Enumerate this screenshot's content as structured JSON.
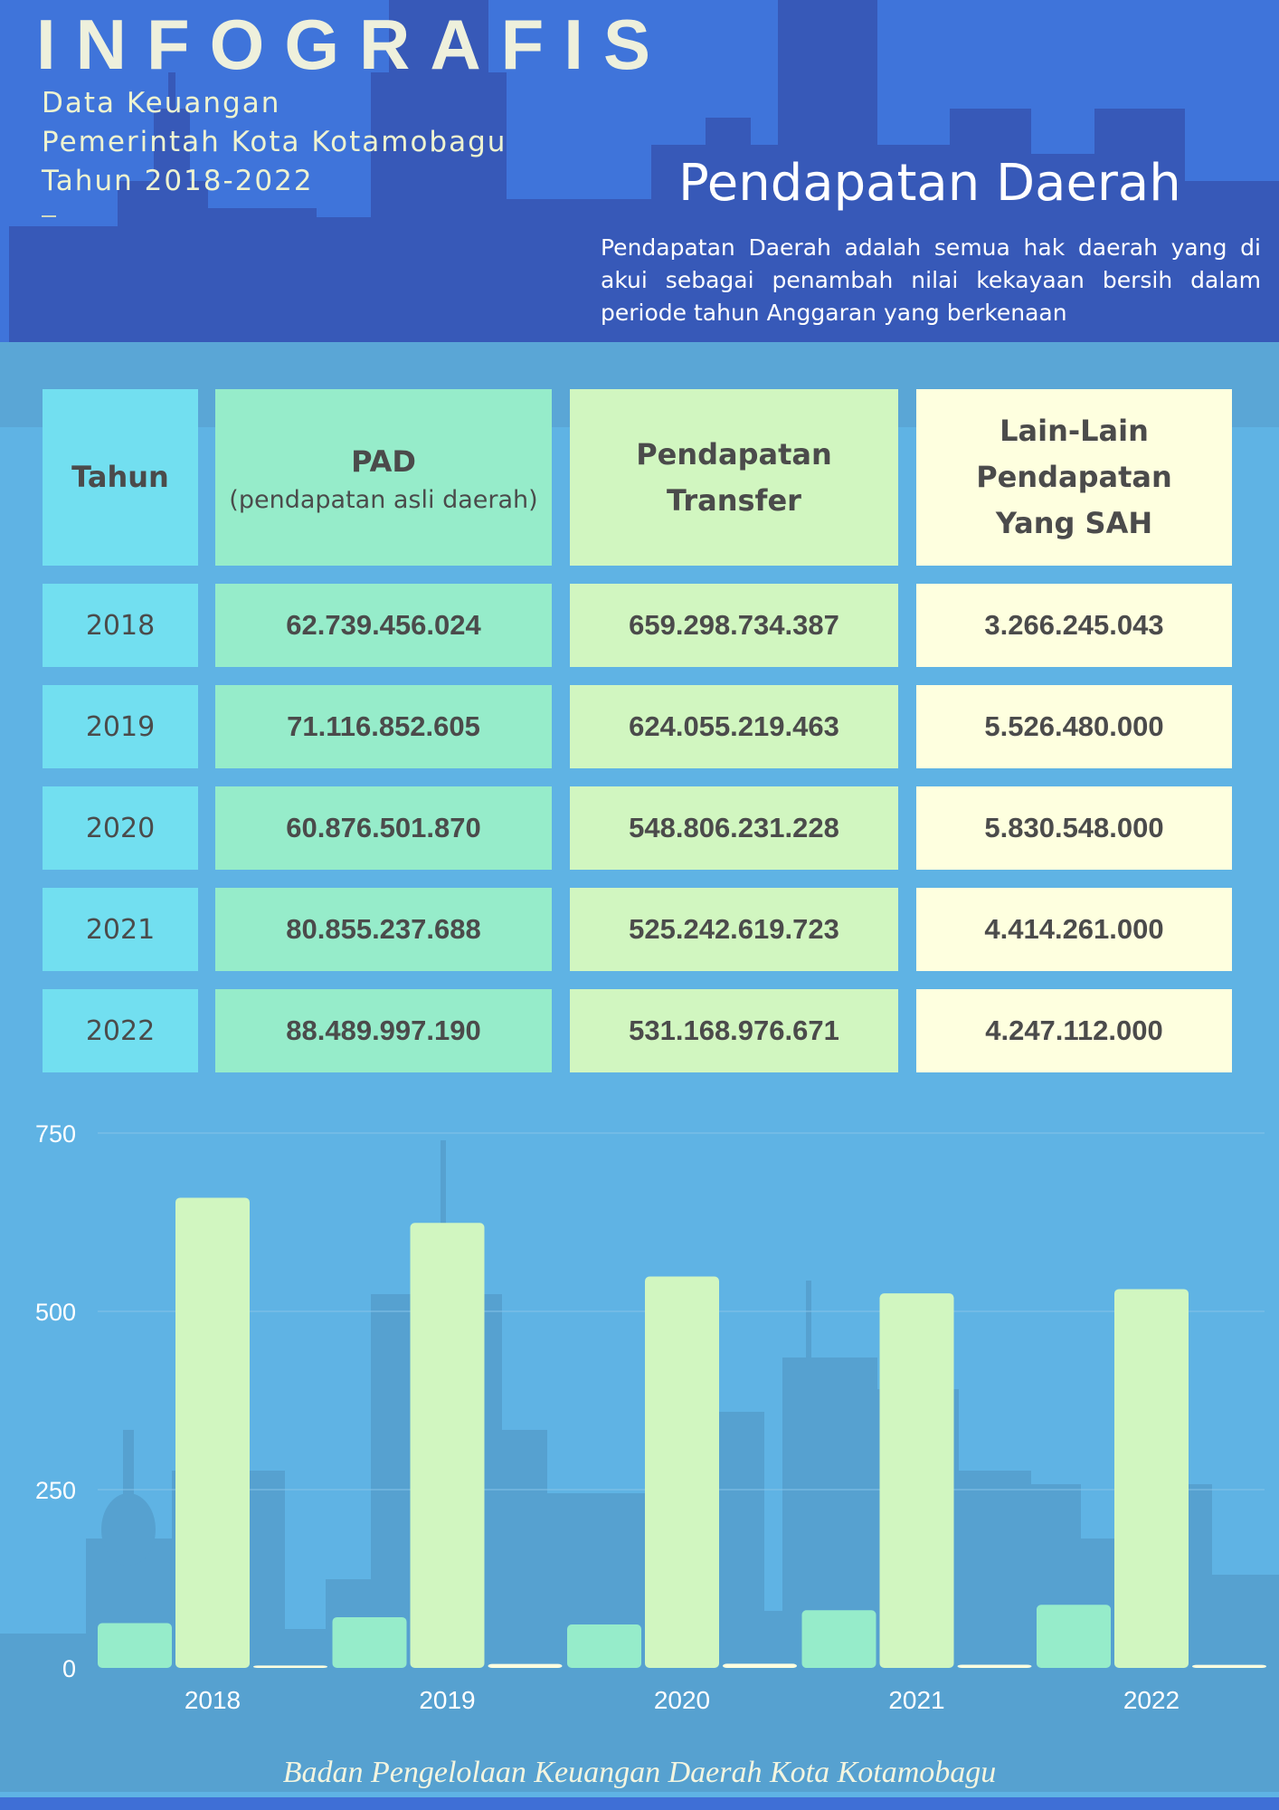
{
  "header": {
    "title": "INFOGRAFIS",
    "subtitle_lines": [
      "Data Keuangan",
      "Pemerintah Kota Kotamobagu",
      "Tahun 2018-2022"
    ],
    "section_title": "Pendapatan Daerah",
    "description": "Pendapatan Daerah adalah semua hak daerah yang di akui sebagai penambah nilai kekayaan bersih dalam periode tahun Anggaran yang berkenaan"
  },
  "table": {
    "headers": {
      "year": "Tahun",
      "pad": "PAD",
      "pad_sub": "(pendapatan asli daerah)",
      "transfer_line1": "Pendapatan",
      "transfer_line2": "Transfer",
      "other_line1": "Lain-Lain",
      "other_line2": "Pendapatan",
      "other_line3": "Yang SAH"
    },
    "rows": [
      {
        "year": "2018",
        "pad": "62.739.456.024",
        "transfer": "659.298.734.387",
        "other": "3.266.245.043"
      },
      {
        "year": "2019",
        "pad": "71.116.852.605",
        "transfer": "624.055.219.463",
        "other": "5.526.480.000"
      },
      {
        "year": "2020",
        "pad": "60.876.501.870",
        "transfer": "548.806.231.228",
        "other": "5.830.548.000"
      },
      {
        "year": "2021",
        "pad": "80.855.237.688",
        "transfer": "525.242.619.723",
        "other": "4.414.261.000"
      },
      {
        "year": "2022",
        "pad": "88.489.997.190",
        "transfer": "531.168.976.671",
        "other": "4.247.112.000"
      }
    ]
  },
  "chart_data": {
    "type": "bar",
    "categories": [
      "2018",
      "2019",
      "2020",
      "2021",
      "2022"
    ],
    "series": [
      {
        "values": [
          62.74,
          71.12,
          60.88,
          80.86,
          88.49
        ],
        "color": "#96ecca"
      },
      {
        "values": [
          659.3,
          624.06,
          548.81,
          525.24,
          531.17
        ],
        "color": "#d1f6c0"
      },
      {
        "values": [
          3.27,
          5.53,
          5.83,
          4.41,
          4.25
        ],
        "color": "#feffdf"
      }
    ],
    "yticks": [
      0,
      250,
      500,
      750
    ],
    "ylim": [
      0,
      750
    ],
    "grid": true
  },
  "footer": "Badan Pengelolaan Keuangan Daerah Kota Kotamobagu",
  "colors": {
    "header_bg": "#3f74da",
    "page_bg": "#5fb3e4",
    "year_col": "#72dff0",
    "pad_col": "#96ecca",
    "transfer_col": "#d1f6c0",
    "other_col": "#feffdf"
  }
}
